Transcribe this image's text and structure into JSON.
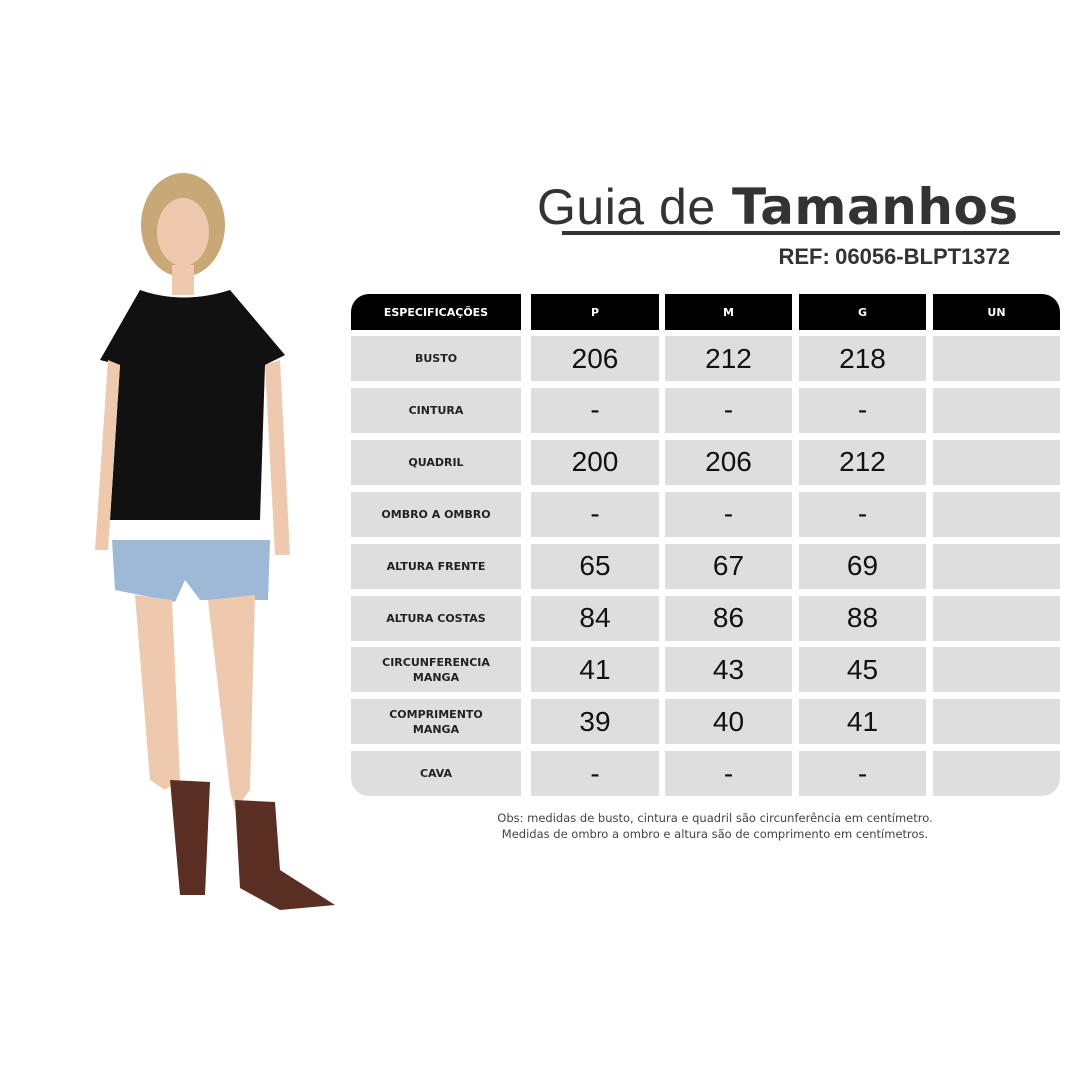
{
  "title": {
    "light": "Guia de",
    "bold": "Tamanhos"
  },
  "ref": {
    "label": "REF:",
    "code": "06056-BLPT1372"
  },
  "table": {
    "headers": [
      "ESPECIFICAÇÕES",
      "P",
      "M",
      "G",
      "UN"
    ],
    "rows": [
      {
        "label": "BUSTO",
        "values": [
          "206",
          "212",
          "218",
          ""
        ]
      },
      {
        "label": "CINTURA",
        "values": [
          "-",
          "-",
          "-",
          ""
        ]
      },
      {
        "label": "QUADRIL",
        "values": [
          "200",
          "206",
          "212",
          ""
        ]
      },
      {
        "label": "OMBRO A OMBRO",
        "values": [
          "-",
          "-",
          "-",
          ""
        ]
      },
      {
        "label": "ALTURA FRENTE",
        "values": [
          "65",
          "67",
          "69",
          ""
        ]
      },
      {
        "label": "ALTURA COSTAS",
        "values": [
          "84",
          "86",
          "88",
          ""
        ]
      },
      {
        "label": "CIRCUNFERENCIA MANGA",
        "values": [
          "41",
          "43",
          "45",
          ""
        ]
      },
      {
        "label": "COMPRIMENTO MANGA",
        "values": [
          "39",
          "40",
          "41",
          ""
        ]
      },
      {
        "label": "CAVA",
        "values": [
          "-",
          "-",
          "-",
          ""
        ]
      }
    ]
  },
  "obs": {
    "line1": "Obs: medidas de busto, cintura e quadril são circunferência em centímetro.",
    "line2": "Medidas de ombro a ombro e altura são de comprimento em centímetros."
  },
  "colors": {
    "header": "#000000",
    "cell": "#dedede",
    "text": "#333333"
  }
}
